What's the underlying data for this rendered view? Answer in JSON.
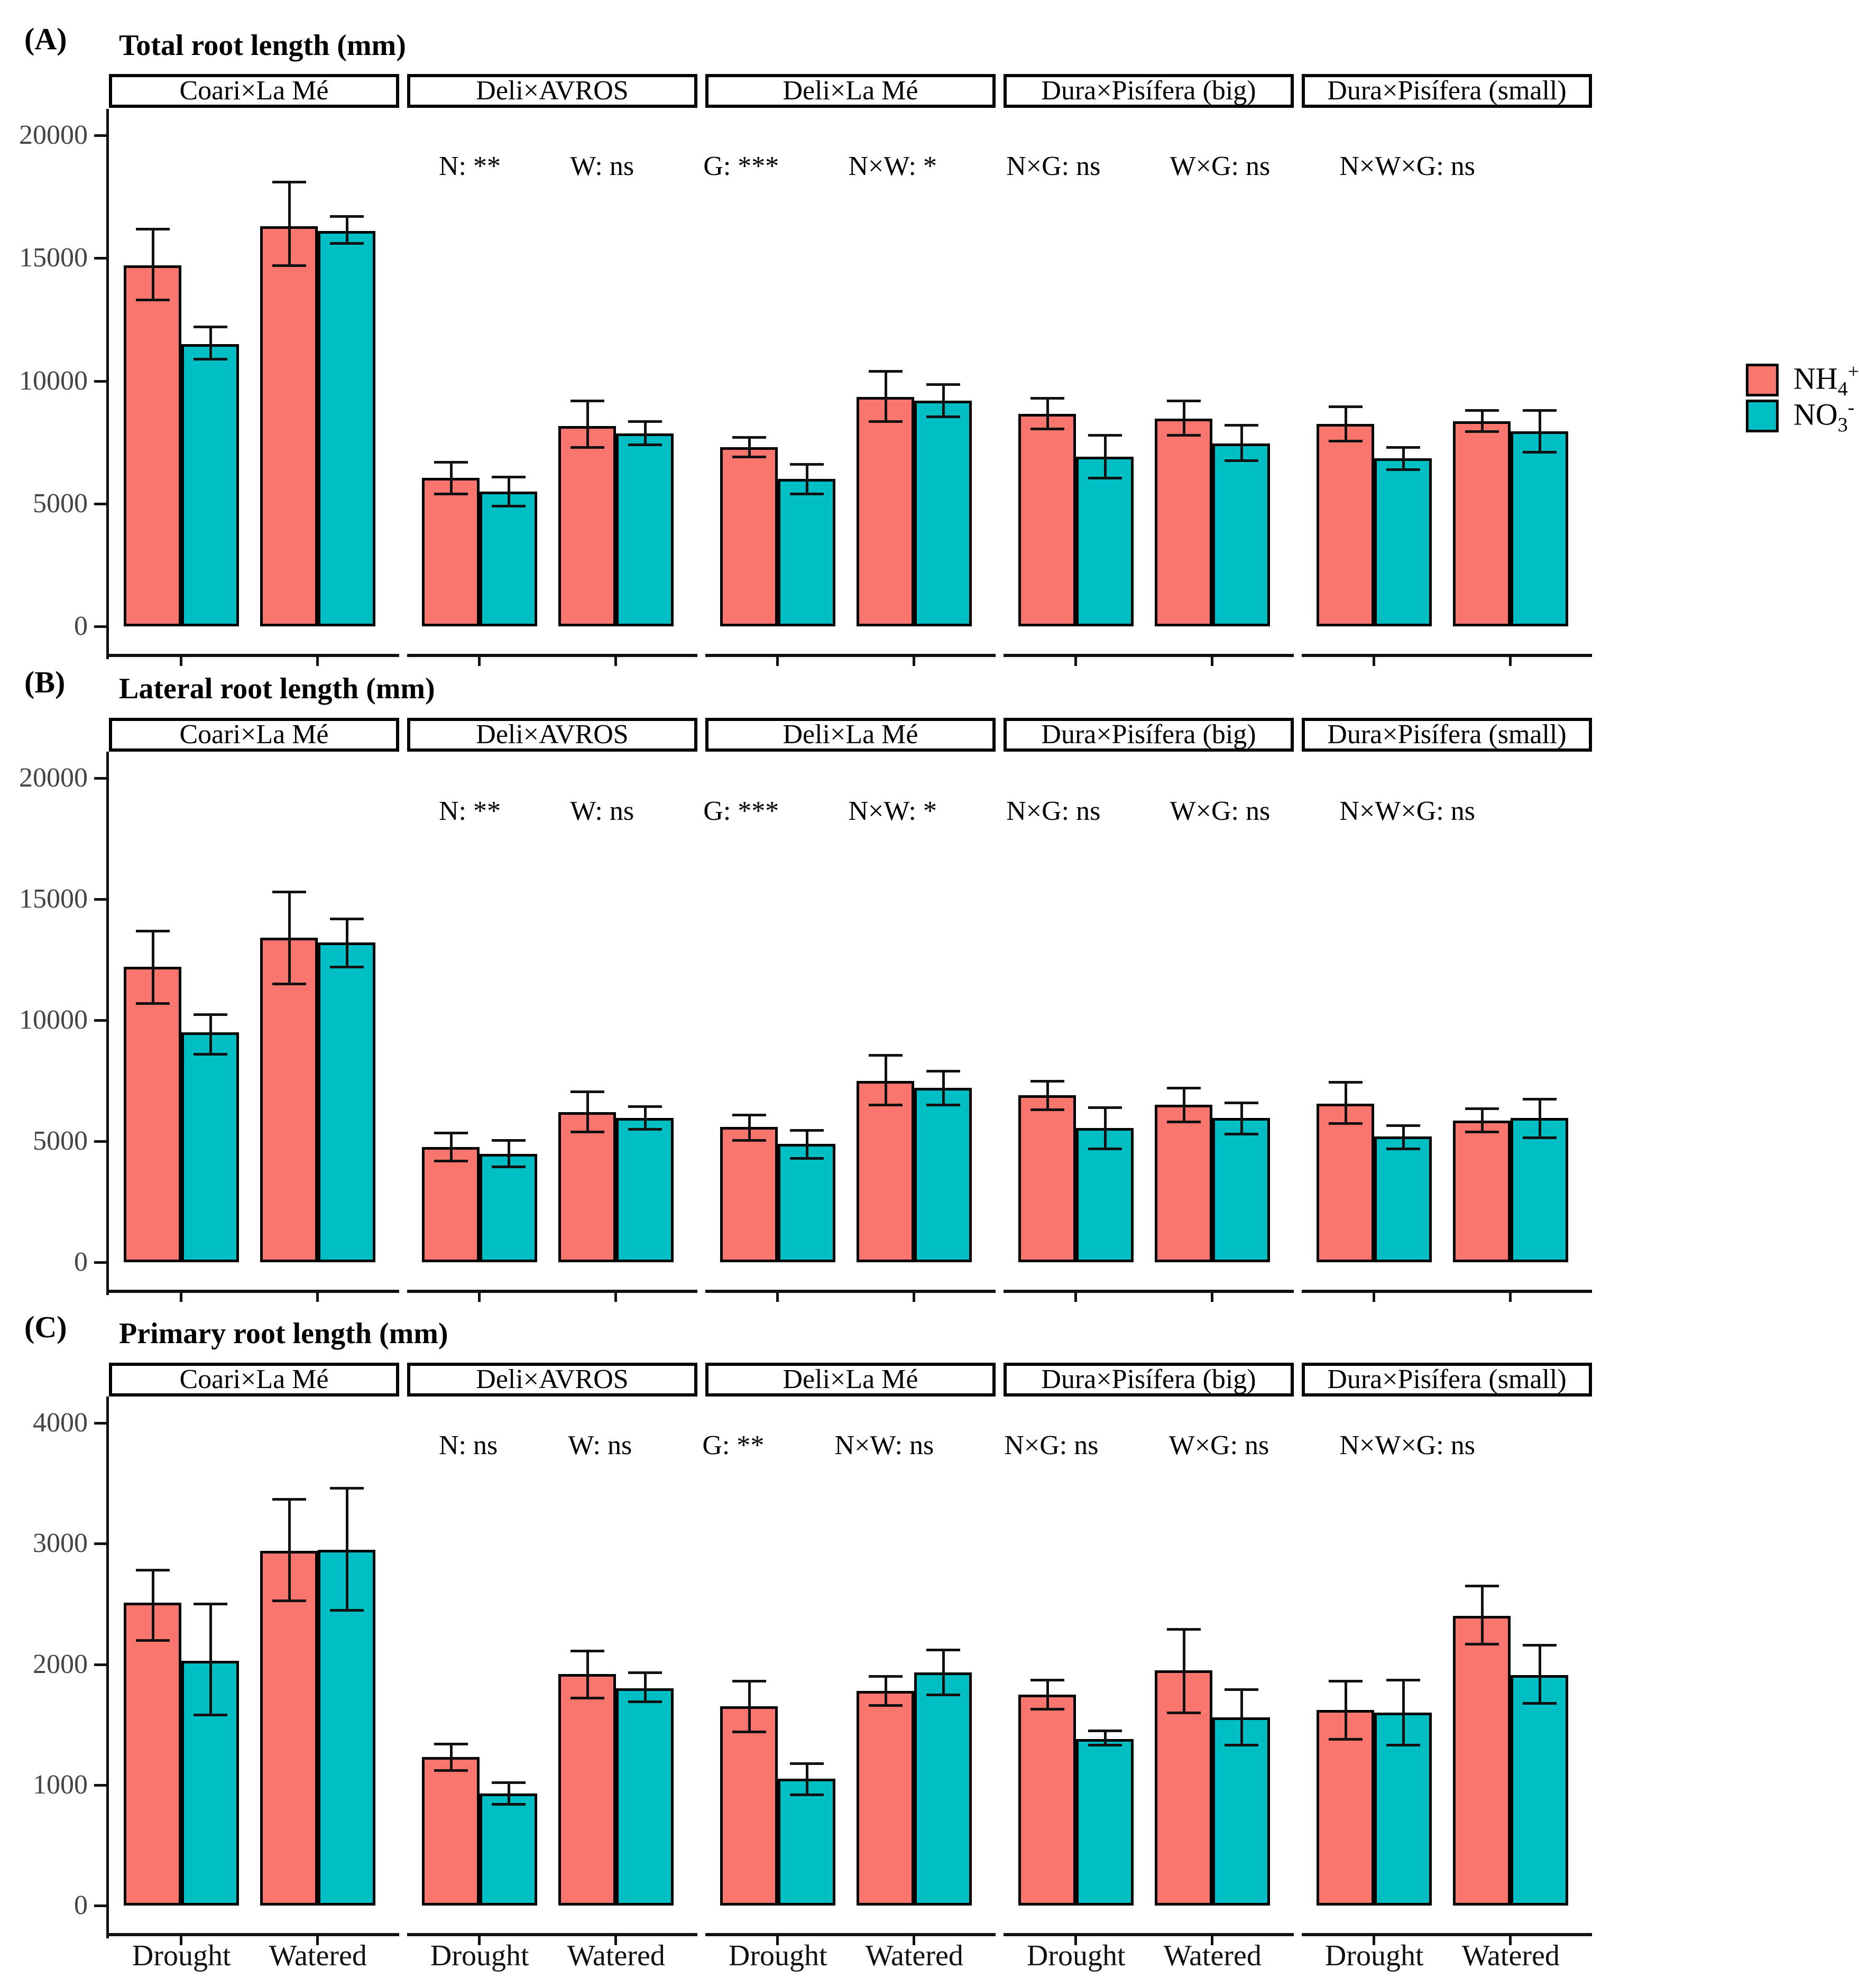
{
  "figure": {
    "colors": {
      "nh4": "#F8766D",
      "no3": "#00BFC4",
      "bar_border": "#000000",
      "axis": "#111111",
      "tick_label": "#444444"
    },
    "legend": {
      "items": [
        {
          "name": "NH4+",
          "base": "NH",
          "sub": "4",
          "sup": "+",
          "color": "#F8766D"
        },
        {
          "name": "NO3-",
          "base": "NO",
          "sub": "3",
          "sup": "-",
          "color": "#00BFC4"
        }
      ]
    }
  },
  "chart_data": [
    {
      "type": "bar",
      "panel_label": "(A)",
      "title": "Total root length (mm)",
      "ylabel": "",
      "ylim": [
        0,
        20000
      ],
      "yticks": [
        0,
        5000,
        10000,
        15000,
        20000
      ],
      "x_groups": [
        "Drought",
        "Watered"
      ],
      "series": [
        "NH4+",
        "NO3-"
      ],
      "legend_position": "right",
      "grid": false,
      "stats": [
        "N: **",
        "W: ns",
        "G: ***",
        "N×W: *",
        "N×G: ns",
        "W×G: ns",
        "N×W×G: ns"
      ],
      "show_x_labels": false,
      "facets": [
        {
          "label": "Coari×La Mé",
          "bars": [
            {
              "group": "Drought",
              "series": "NH4+",
              "mean": 14700,
              "lo": 13300,
              "hi": 16200
            },
            {
              "group": "Drought",
              "series": "NO3-",
              "mean": 11500,
              "lo": 10900,
              "hi": 12200
            },
            {
              "group": "Watered",
              "series": "NH4+",
              "mean": 16300,
              "lo": 14700,
              "hi": 18100
            },
            {
              "group": "Watered",
              "series": "NO3-",
              "mean": 16100,
              "lo": 15600,
              "hi": 16700
            }
          ]
        },
        {
          "label": "Deli×AVROS",
          "bars": [
            {
              "group": "Drought",
              "series": "NH4+",
              "mean": 6050,
              "lo": 5400,
              "hi": 6700
            },
            {
              "group": "Drought",
              "series": "NO3-",
              "mean": 5500,
              "lo": 4900,
              "hi": 6100
            },
            {
              "group": "Watered",
              "series": "NH4+",
              "mean": 8150,
              "lo": 7300,
              "hi": 9200
            },
            {
              "group": "Watered",
              "series": "NO3-",
              "mean": 7850,
              "lo": 7400,
              "hi": 8350
            }
          ]
        },
        {
          "label": "Deli×La Mé",
          "bars": [
            {
              "group": "Drought",
              "series": "NH4+",
              "mean": 7300,
              "lo": 6900,
              "hi": 7700
            },
            {
              "group": "Drought",
              "series": "NO3-",
              "mean": 6000,
              "lo": 5400,
              "hi": 6600
            },
            {
              "group": "Watered",
              "series": "NH4+",
              "mean": 9350,
              "lo": 8350,
              "hi": 10400
            },
            {
              "group": "Watered",
              "series": "NO3-",
              "mean": 9200,
              "lo": 8550,
              "hi": 9850
            }
          ]
        },
        {
          "label": "Dura×Pisífera (big)",
          "bars": [
            {
              "group": "Drought",
              "series": "NH4+",
              "mean": 8650,
              "lo": 8050,
              "hi": 9300
            },
            {
              "group": "Drought",
              "series": "NO3-",
              "mean": 6900,
              "lo": 6050,
              "hi": 7800
            },
            {
              "group": "Watered",
              "series": "NH4+",
              "mean": 8450,
              "lo": 7800,
              "hi": 9200
            },
            {
              "group": "Watered",
              "series": "NO3-",
              "mean": 7450,
              "lo": 6750,
              "hi": 8200
            }
          ]
        },
        {
          "label": "Dura×Pisífera (small)",
          "bars": [
            {
              "group": "Drought",
              "series": "NH4+",
              "mean": 8250,
              "lo": 7550,
              "hi": 8950
            },
            {
              "group": "Drought",
              "series": "NO3-",
              "mean": 6850,
              "lo": 6400,
              "hi": 7300
            },
            {
              "group": "Watered",
              "series": "NH4+",
              "mean": 8350,
              "lo": 7950,
              "hi": 8800
            },
            {
              "group": "Watered",
              "series": "NO3-",
              "mean": 7950,
              "lo": 7100,
              "hi": 8800
            }
          ]
        }
      ]
    },
    {
      "type": "bar",
      "panel_label": "(B)",
      "title": "Lateral root length (mm)",
      "ylabel": "",
      "ylim": [
        0,
        20000
      ],
      "yticks": [
        0,
        5000,
        10000,
        15000,
        20000
      ],
      "x_groups": [
        "Drought",
        "Watered"
      ],
      "series": [
        "NH4+",
        "NO3-"
      ],
      "grid": false,
      "stats": [
        "N: **",
        "W: ns",
        "G: ***",
        "N×W: *",
        "N×G: ns",
        "W×G: ns",
        "N×W×G: ns"
      ],
      "show_x_labels": false,
      "facets": [
        {
          "label": "Coari×La Mé",
          "bars": [
            {
              "group": "Drought",
              "series": "NH4+",
              "mean": 12200,
              "lo": 10700,
              "hi": 13700
            },
            {
              "group": "Drought",
              "series": "NO3-",
              "mean": 9500,
              "lo": 8600,
              "hi": 10250
            },
            {
              "group": "Watered",
              "series": "NH4+",
              "mean": 13400,
              "lo": 11500,
              "hi": 15300
            },
            {
              "group": "Watered",
              "series": "NO3-",
              "mean": 13200,
              "lo": 12200,
              "hi": 14200
            }
          ]
        },
        {
          "label": "Deli×AVROS",
          "bars": [
            {
              "group": "Drought",
              "series": "NH4+",
              "mean": 4750,
              "lo": 4200,
              "hi": 5350
            },
            {
              "group": "Drought",
              "series": "NO3-",
              "mean": 4480,
              "lo": 3950,
              "hi": 5050
            },
            {
              "group": "Watered",
              "series": "NH4+",
              "mean": 6200,
              "lo": 5400,
              "hi": 7050
            },
            {
              "group": "Watered",
              "series": "NO3-",
              "mean": 5950,
              "lo": 5500,
              "hi": 6450
            }
          ]
        },
        {
          "label": "Deli×La Mé",
          "bars": [
            {
              "group": "Drought",
              "series": "NH4+",
              "mean": 5600,
              "lo": 5050,
              "hi": 6100
            },
            {
              "group": "Drought",
              "series": "NO3-",
              "mean": 4900,
              "lo": 4300,
              "hi": 5450
            },
            {
              "group": "Watered",
              "series": "NH4+",
              "mean": 7500,
              "lo": 6500,
              "hi": 8550
            },
            {
              "group": "Watered",
              "series": "NO3-",
              "mean": 7200,
              "lo": 6500,
              "hi": 7900
            }
          ]
        },
        {
          "label": "Dura×Pisífera (big)",
          "bars": [
            {
              "group": "Drought",
              "series": "NH4+",
              "mean": 6900,
              "lo": 6300,
              "hi": 7500
            },
            {
              "group": "Drought",
              "series": "NO3-",
              "mean": 5550,
              "lo": 4700,
              "hi": 6400
            },
            {
              "group": "Watered",
              "series": "NH4+",
              "mean": 6500,
              "lo": 5800,
              "hi": 7200
            },
            {
              "group": "Watered",
              "series": "NO3-",
              "mean": 5950,
              "lo": 5300,
              "hi": 6600
            }
          ]
        },
        {
          "label": "Dura×Pisífera (small)",
          "bars": [
            {
              "group": "Drought",
              "series": "NH4+",
              "mean": 6550,
              "lo": 5750,
              "hi": 7450
            },
            {
              "group": "Drought",
              "series": "NO3-",
              "mean": 5200,
              "lo": 4700,
              "hi": 5650
            },
            {
              "group": "Watered",
              "series": "NH4+",
              "mean": 5850,
              "lo": 5400,
              "hi": 6350
            },
            {
              "group": "Watered",
              "series": "NO3-",
              "mean": 5950,
              "lo": 5150,
              "hi": 6750
            }
          ]
        }
      ]
    },
    {
      "type": "bar",
      "panel_label": "(C)",
      "title": "Primary root length (mm)",
      "ylabel": "",
      "ylim": [
        0,
        4000
      ],
      "yticks": [
        0,
        1000,
        2000,
        3000,
        4000
      ],
      "x_groups": [
        "Drought",
        "Watered"
      ],
      "series": [
        "NH4+",
        "NO3-"
      ],
      "grid": false,
      "stats": [
        "N: ns",
        "W: ns",
        "G: **",
        "N×W: ns",
        "N×G: ns",
        "W×G: ns",
        "N×W×G: ns"
      ],
      "show_x_labels": true,
      "facets": [
        {
          "label": "Coari×La Mé",
          "bars": [
            {
              "group": "Drought",
              "series": "NH4+",
              "mean": 2510,
              "lo": 2200,
              "hi": 2780
            },
            {
              "group": "Drought",
              "series": "NO3-",
              "mean": 2030,
              "lo": 1580,
              "hi": 2500
            },
            {
              "group": "Watered",
              "series": "NH4+",
              "mean": 2940,
              "lo": 2530,
              "hi": 3370
            },
            {
              "group": "Watered",
              "series": "NO3-",
              "mean": 2950,
              "lo": 2450,
              "hi": 3460
            }
          ]
        },
        {
          "label": "Deli×AVROS",
          "bars": [
            {
              "group": "Drought",
              "series": "NH4+",
              "mean": 1230,
              "lo": 1120,
              "hi": 1340
            },
            {
              "group": "Drought",
              "series": "NO3-",
              "mean": 930,
              "lo": 840,
              "hi": 1020
            },
            {
              "group": "Watered",
              "series": "NH4+",
              "mean": 1920,
              "lo": 1720,
              "hi": 2110
            },
            {
              "group": "Watered",
              "series": "NO3-",
              "mean": 1800,
              "lo": 1690,
              "hi": 1930
            }
          ]
        },
        {
          "label": "Deli×La Mé",
          "bars": [
            {
              "group": "Drought",
              "series": "NH4+",
              "mean": 1650,
              "lo": 1440,
              "hi": 1860
            },
            {
              "group": "Drought",
              "series": "NO3-",
              "mean": 1050,
              "lo": 920,
              "hi": 1180
            },
            {
              "group": "Watered",
              "series": "NH4+",
              "mean": 1780,
              "lo": 1660,
              "hi": 1900
            },
            {
              "group": "Watered",
              "series": "NO3-",
              "mean": 1930,
              "lo": 1750,
              "hi": 2120
            }
          ]
        },
        {
          "label": "Dura×Pisífera (big)",
          "bars": [
            {
              "group": "Drought",
              "series": "NH4+",
              "mean": 1750,
              "lo": 1630,
              "hi": 1870
            },
            {
              "group": "Drought",
              "series": "NO3-",
              "mean": 1380,
              "lo": 1330,
              "hi": 1450
            },
            {
              "group": "Watered",
              "series": "NH4+",
              "mean": 1950,
              "lo": 1600,
              "hi": 2290
            },
            {
              "group": "Watered",
              "series": "NO3-",
              "mean": 1560,
              "lo": 1330,
              "hi": 1790
            }
          ]
        },
        {
          "label": "Dura×Pisífera (small)",
          "bars": [
            {
              "group": "Drought",
              "series": "NH4+",
              "mean": 1620,
              "lo": 1380,
              "hi": 1860
            },
            {
              "group": "Drought",
              "series": "NO3-",
              "mean": 1600,
              "lo": 1330,
              "hi": 1870
            },
            {
              "group": "Watered",
              "series": "NH4+",
              "mean": 2400,
              "lo": 2170,
              "hi": 2650
            },
            {
              "group": "Watered",
              "series": "NO3-",
              "mean": 1910,
              "lo": 1680,
              "hi": 2160
            }
          ]
        }
      ]
    }
  ]
}
